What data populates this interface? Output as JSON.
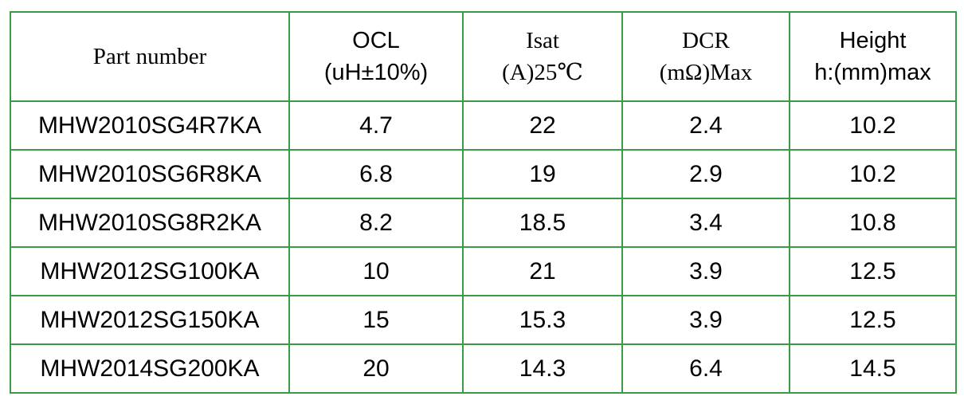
{
  "table": {
    "header": [
      [
        "Part number"
      ],
      [
        "OCL",
        "(uH±10%)"
      ],
      [
        "Isat",
        "(A)25℃"
      ],
      [
        "DCR",
        "(mΩ)Max"
      ],
      [
        "Height",
        "h:(mm)max"
      ]
    ],
    "rows": [
      [
        "MHW2010SG4R7KA",
        "4.7",
        "22",
        "2.4",
        "10.2"
      ],
      [
        "MHW2010SG6R8KA",
        "6.8",
        "19",
        "2.9",
        "10.2"
      ],
      [
        "MHW2010SG8R2KA",
        "8.2",
        "18.5",
        "3.4",
        "10.8"
      ],
      [
        "MHW2012SG100KA",
        "10",
        "21",
        "3.9",
        "12.5"
      ],
      [
        "MHW2012SG150KA",
        "15",
        "15.3",
        "3.9",
        "12.5"
      ],
      [
        "MHW2014SG200KA",
        "20",
        "14.3",
        "6.4",
        "14.5"
      ]
    ]
  }
}
